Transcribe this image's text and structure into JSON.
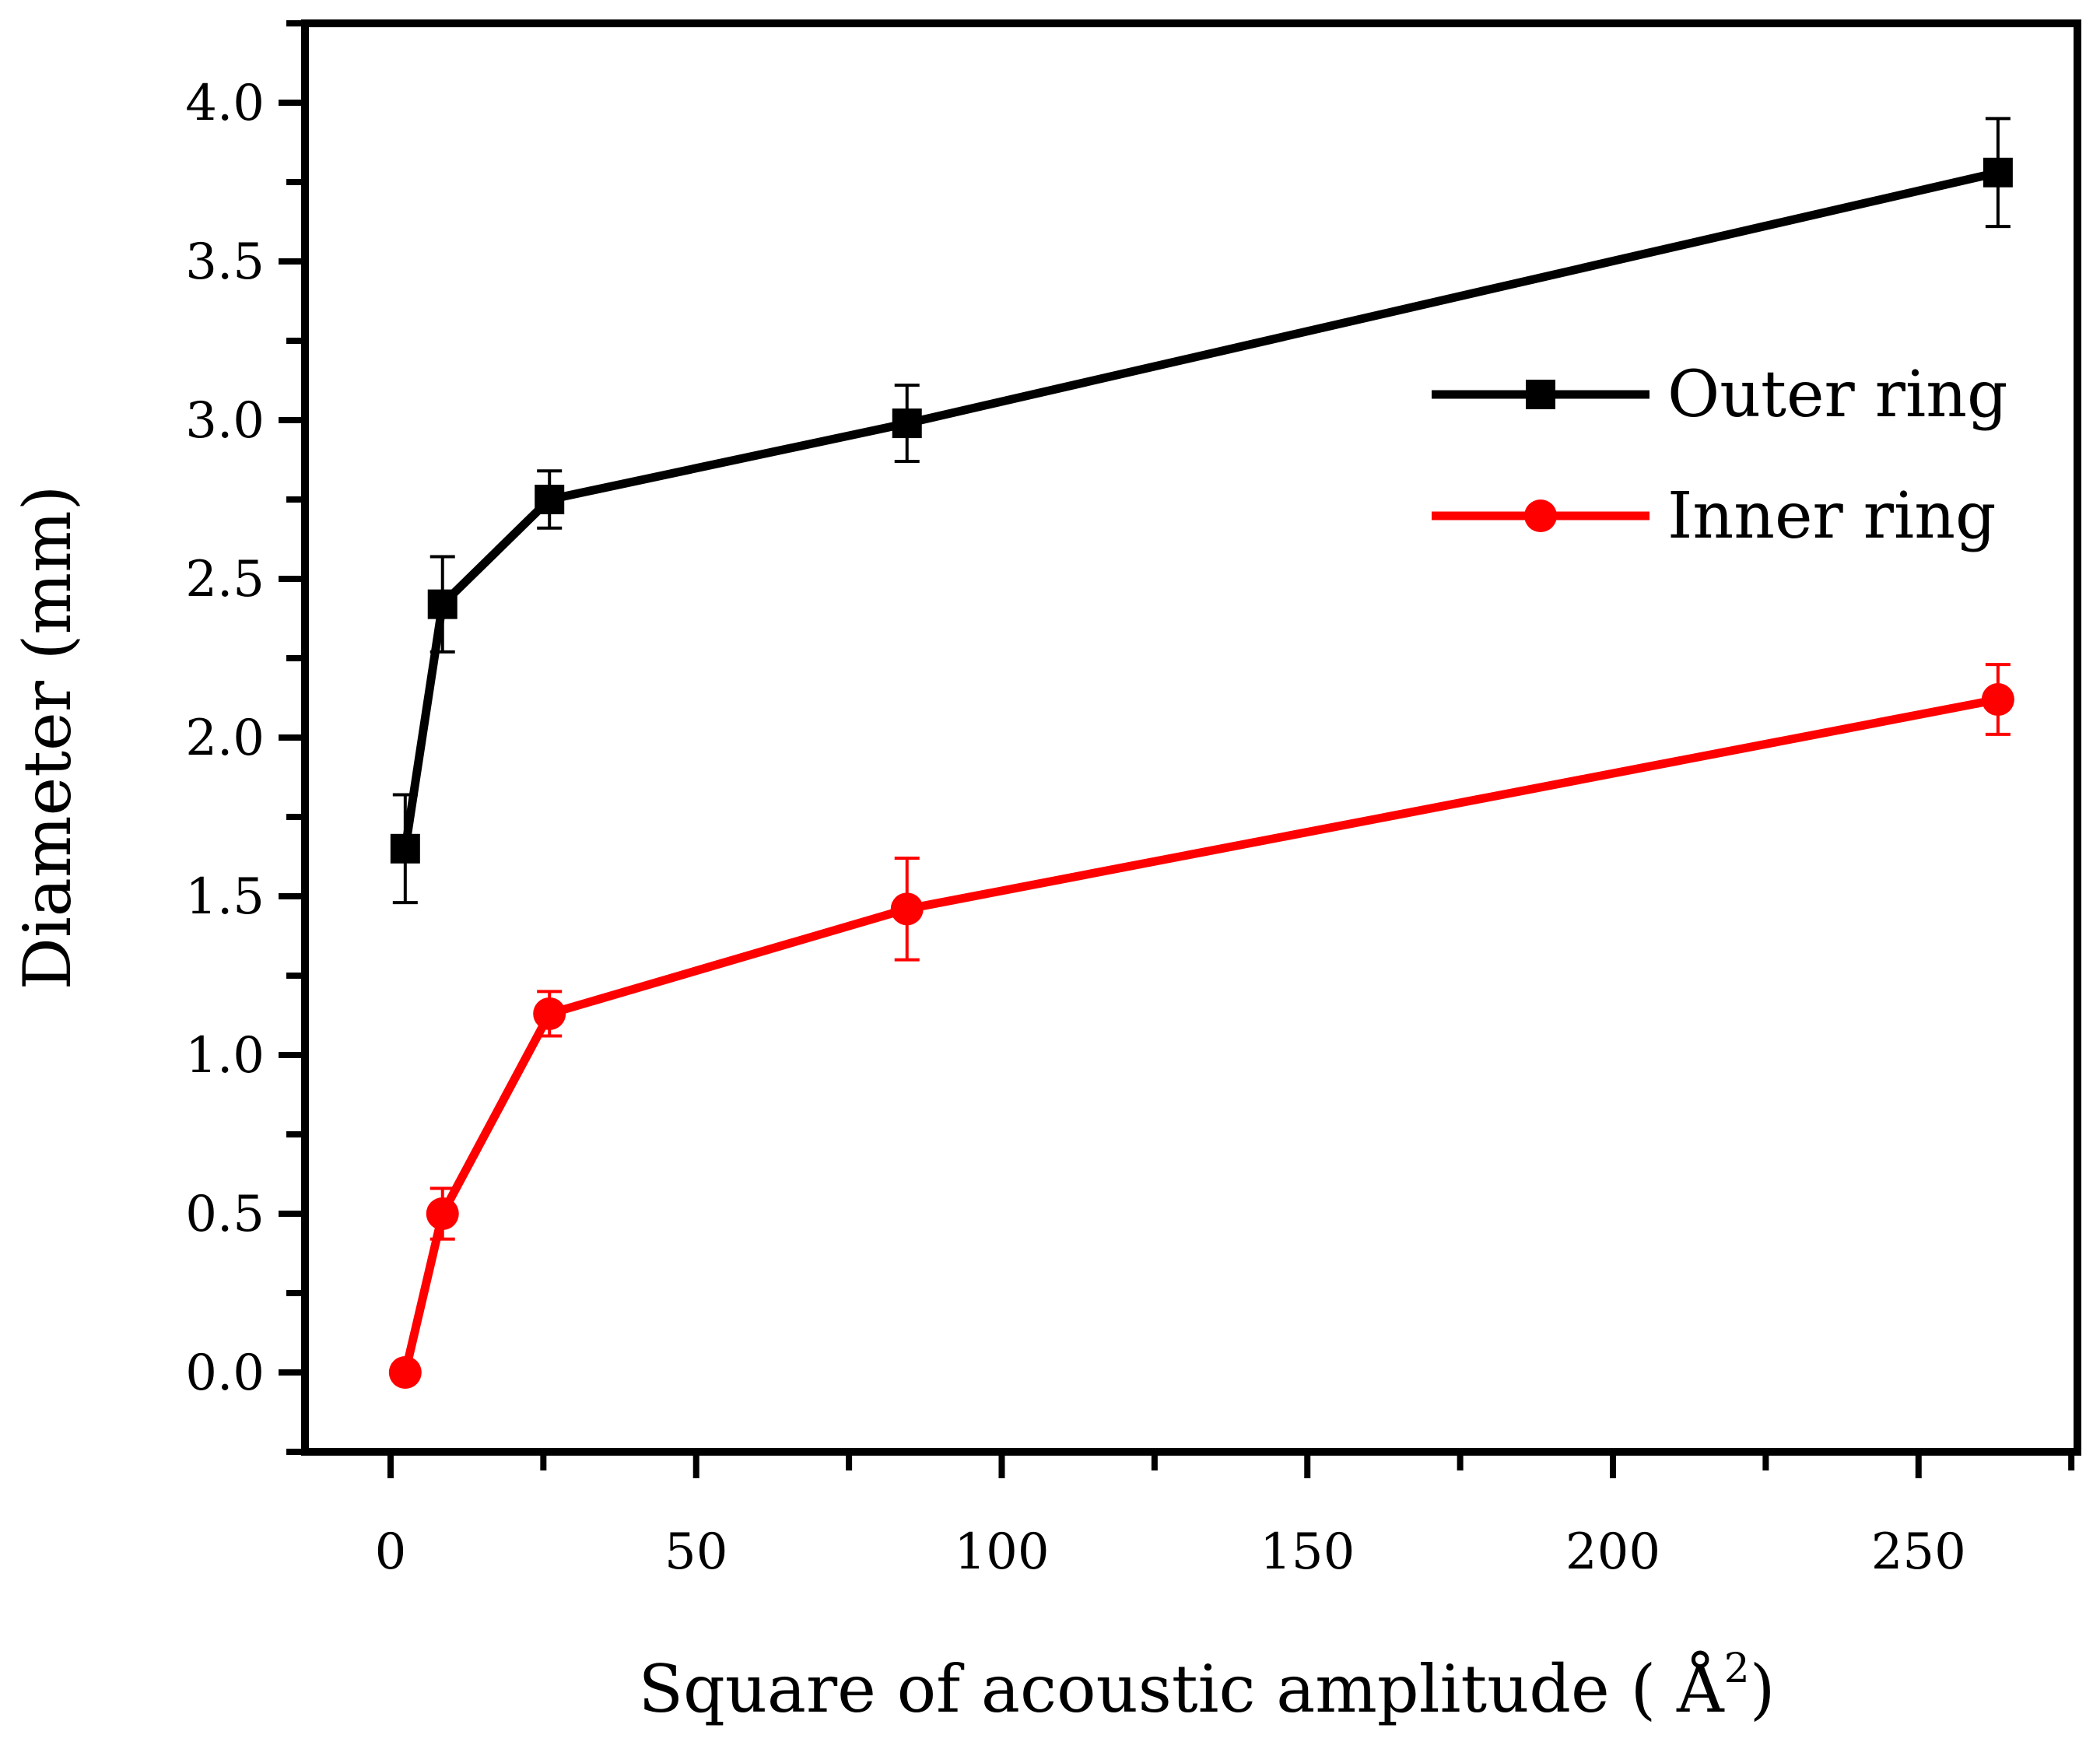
{
  "chart_data": {
    "type": "line",
    "xlabel": "Square of acoustic amplitude ( Å",
    "xlabel_sup": "2",
    "xlabel_close": ")",
    "ylabel": "Diameter (mm)",
    "xlim": [
      -14,
      276
    ],
    "ylim": [
      -0.25,
      4.25
    ],
    "x_ticks": [
      0,
      50,
      100,
      150,
      200,
      250
    ],
    "x_minor_ticks": [
      25,
      75,
      125,
      175,
      225,
      275
    ],
    "x_tick_labels": [
      "0",
      "50",
      "100",
      "150",
      "200",
      "250"
    ],
    "y_ticks": [
      0.0,
      0.5,
      1.0,
      1.5,
      2.0,
      2.5,
      3.0,
      3.5,
      4.0
    ],
    "y_minor_ticks": [
      -0.25,
      0.25,
      0.75,
      1.25,
      1.75,
      2.25,
      2.75,
      3.25,
      3.75,
      4.25
    ],
    "y_tick_labels": [
      "0.0",
      "0.5",
      "1.0",
      "1.5",
      "2.0",
      "2.5",
      "3.0",
      "3.5",
      "4.0"
    ],
    "grid": false,
    "legend_position": "top-right",
    "x": [
      2.4,
      8.5,
      26,
      84.5,
      263
    ],
    "series": [
      {
        "name": "Outer ring",
        "color": "#000000",
        "marker": "square",
        "values": [
          1.65,
          2.42,
          2.75,
          2.99,
          3.78
        ],
        "errors": [
          0.17,
          0.15,
          0.09,
          0.12,
          0.17
        ]
      },
      {
        "name": "Inner ring",
        "color": "#ff0000",
        "marker": "circle",
        "values": [
          0.0,
          0.5,
          1.13,
          1.46,
          2.12
        ],
        "errors": [
          0.0,
          0.08,
          0.07,
          0.16,
          0.11
        ]
      }
    ]
  }
}
